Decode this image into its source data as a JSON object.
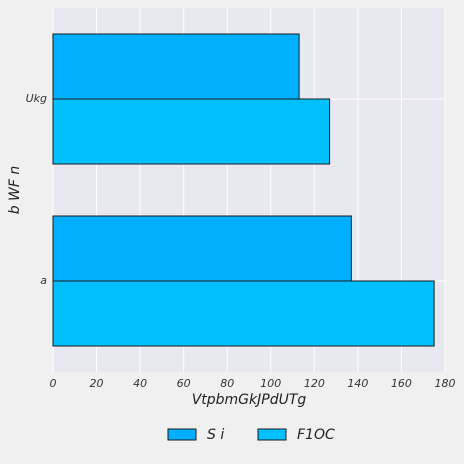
{
  "chart_data": {
    "type": "bar",
    "orientation": "horizontal",
    "categories": [
      "Ukg",
      "a"
    ],
    "series": [
      {
        "name": "S i",
        "values": [
          113,
          137
        ],
        "color": "#00b0ff"
      },
      {
        "name": "F1OC",
        "values": [
          127,
          175
        ],
        "color": "#00c0ff"
      }
    ],
    "xlabel": "VtpbmGkJPdUTg",
    "ylabel": "b WF n",
    "xlim": [
      0,
      180
    ],
    "xticks": [
      0,
      20,
      40,
      60,
      80,
      100,
      120,
      140,
      160,
      180
    ],
    "grid": true,
    "legend_position": "bottom-center"
  }
}
